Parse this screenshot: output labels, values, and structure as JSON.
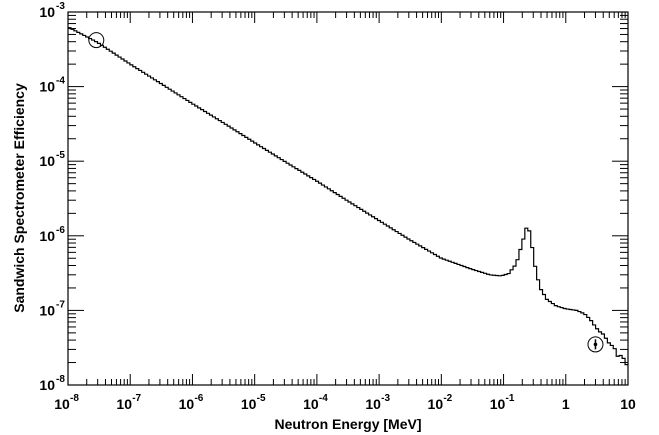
{
  "chart_data": {
    "type": "line",
    "title": "",
    "xlabel": "Neutron Energy [MeV]",
    "ylabel": "Sandwich Spectrometer Efficiency",
    "xscale": "log",
    "yscale": "log",
    "xlim": [
      1e-08,
      10
    ],
    "ylim": [
      1e-08,
      0.001
    ],
    "grid": false,
    "legend": "none",
    "x_ticks": [
      {
        "value": 1e-08,
        "base": "10",
        "exp": "-8"
      },
      {
        "value": 1e-07,
        "base": "10",
        "exp": "-7"
      },
      {
        "value": 1e-06,
        "base": "10",
        "exp": "-6"
      },
      {
        "value": 1e-05,
        "base": "10",
        "exp": "-5"
      },
      {
        "value": 0.0001,
        "base": "10",
        "exp": "-4"
      },
      {
        "value": 0.001,
        "base": "10",
        "exp": "-3"
      },
      {
        "value": 0.01,
        "base": "10",
        "exp": "-2"
      },
      {
        "value": 0.1,
        "base": "10",
        "exp": "-1"
      },
      {
        "value": 1,
        "base": "1",
        "exp": ""
      },
      {
        "value": 10,
        "base": "10",
        "exp": ""
      }
    ],
    "y_ticks": [
      {
        "value": 1e-08,
        "base": "10",
        "exp": "-8"
      },
      {
        "value": 1e-07,
        "base": "10",
        "exp": "-7"
      },
      {
        "value": 1e-06,
        "base": "10",
        "exp": "-6"
      },
      {
        "value": 1e-05,
        "base": "10",
        "exp": "-5"
      },
      {
        "value": 0.0001,
        "base": "10",
        "exp": "-4"
      },
      {
        "value": 0.001,
        "base": "10",
        "exp": "-3"
      }
    ],
    "series": [
      {
        "style": "step",
        "color": "#000000",
        "x": [
          1e-08,
          3e-08,
          1e-07,
          3e-07,
          1e-06,
          3e-06,
          1e-05,
          3e-05,
          0.0001,
          0.0003,
          0.001,
          0.003,
          0.01,
          0.03,
          0.06,
          0.09,
          0.12,
          0.16,
          0.2,
          0.24,
          0.27,
          0.3,
          0.34,
          0.4,
          0.5,
          0.7,
          1.0,
          1.5,
          2.0,
          2.5,
          3.0,
          3.5,
          4.0,
          5.0,
          6.0,
          7.0,
          8.0,
          9.0,
          10.0
        ],
        "y": [
          0.00063,
          0.00039,
          0.0002,
          0.000112,
          5.9e-05,
          3.35e-05,
          1.77e-05,
          1e-05,
          5.4e-06,
          3e-06,
          1.6e-06,
          9e-07,
          5e-07,
          3.6e-07,
          3e-07,
          2.9e-07,
          3.1e-07,
          4.2e-07,
          8e-07,
          1.4e-06,
          1.05e-06,
          5.5e-07,
          3e-07,
          1.9e-07,
          1.4e-07,
          1.15e-07,
          1.05e-07,
          1e-07,
          9e-08,
          7.5e-08,
          6e-08,
          5.2e-08,
          4.8e-08,
          3.6e-08,
          3.2e-08,
          2.3e-08,
          2.6e-08,
          2e-08,
          1.75e-08
        ]
      }
    ],
    "markers": [
      {
        "shape": "circle",
        "x": 2.85e-08,
        "y": 0.00042,
        "yerr": null
      },
      {
        "shape": "circle",
        "x": 3.0,
        "y": 3.5e-08,
        "yerr": [
          3e-08,
          4.1e-08
        ]
      }
    ]
  }
}
